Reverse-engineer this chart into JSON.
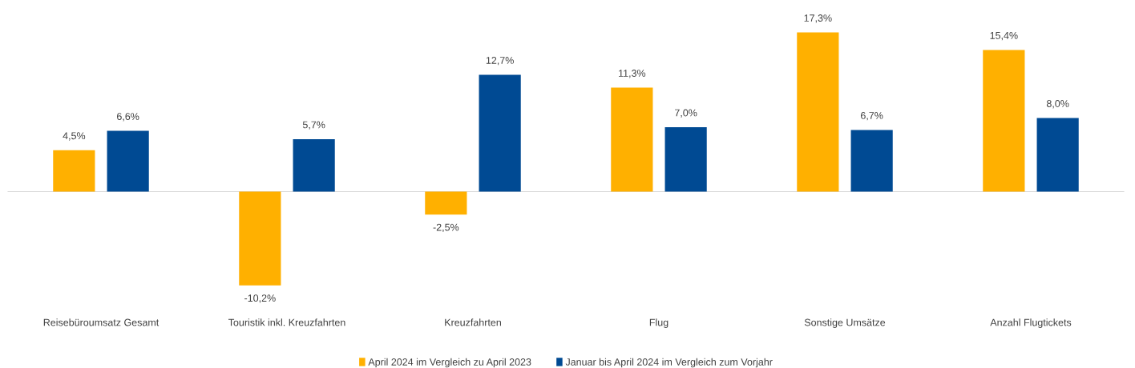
{
  "chart_data": {
    "type": "bar",
    "categories": [
      "Reisebüroumsatz Gesamt",
      "Touristik inkl. Kreuzfahrten",
      "Kreuzfahrten",
      "Flug",
      "Sonstige Umsätze",
      "Anzahl Flugtickets"
    ],
    "series": [
      {
        "name": "April 2024 im Vergleich zu April 2023",
        "color": "#ffb000",
        "values": [
          4.5,
          -10.2,
          -2.5,
          11.3,
          17.3,
          15.4
        ],
        "value_labels": [
          "4,5%",
          "-10,2%",
          "-2,5%",
          "11,3%",
          "17,3%",
          "15,4%"
        ]
      },
      {
        "name": "Januar bis April 2024 im Vergleich zum Vorjahr",
        "color": "#004a93",
        "values": [
          6.6,
          5.7,
          12.7,
          7.0,
          6.7,
          8.0
        ],
        "value_labels": [
          "6,6%",
          "5,7%",
          "12,7%",
          "7,0%",
          "6,7%",
          "8,0%"
        ]
      }
    ],
    "legend": "bottom"
  }
}
